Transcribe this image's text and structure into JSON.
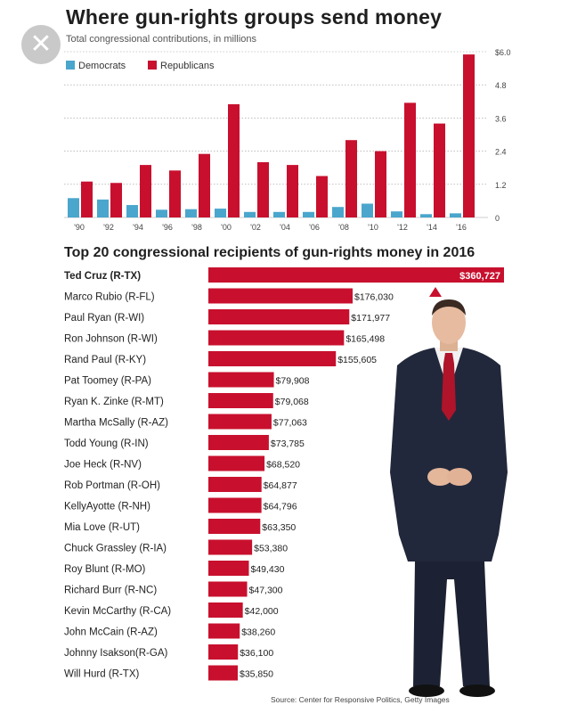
{
  "overlay": {
    "close_icon": "close-icon"
  },
  "header": {
    "title": "Where gun-rights groups send money",
    "subtitle": "Total congressional contributions, in millions"
  },
  "colors": {
    "democrats": "#4aa6cc",
    "republicans": "#c8102e"
  },
  "chart_data": [
    {
      "type": "bar",
      "title": "Where gun-rights groups send money",
      "subtitle": "Total congressional contributions, in millions",
      "categories": [
        "'90",
        "'92",
        "'94",
        "'96",
        "'98",
        "'00",
        "'02",
        "'04",
        "'06",
        "'08",
        "'10",
        "'12",
        "'14",
        "'16"
      ],
      "series": [
        {
          "name": "Democrats",
          "values": [
            0.7,
            0.65,
            0.45,
            0.28,
            0.3,
            0.32,
            0.2,
            0.2,
            0.2,
            0.38,
            0.5,
            0.22,
            0.12,
            0.15
          ]
        },
        {
          "name": "Republicans",
          "values": [
            1.3,
            1.25,
            1.9,
            1.7,
            2.3,
            4.1,
            2.0,
            1.9,
            1.5,
            2.8,
            2.4,
            4.15,
            3.4,
            5.9
          ]
        }
      ],
      "y_ticks": [
        "$6.0",
        "4.8",
        "3.6",
        "2.4",
        "1.2",
        "0"
      ],
      "ylim": [
        0,
        6.0
      ],
      "legend": [
        "Democrats",
        "Republicans"
      ],
      "legend_position": "top-left",
      "grid": true
    },
    {
      "type": "bar",
      "orientation": "horizontal",
      "title": "Top 20 congressional recipients of gun-rights money in 2016",
      "categories": [
        "Ted Cruz (R-TX)",
        "Marco Rubio (R-FL)",
        "Paul Ryan (R-WI)",
        "Ron Johnson (R-WI)",
        "Rand Paul (R-KY)",
        "Pat Toomey (R-PA)",
        "Ryan K. Zinke (R-MT)",
        "Martha McSally (R-AZ)",
        "Todd Young (R-IN)",
        "Joe Heck (R-NV)",
        "Rob Portman (R-OH)",
        "KellyAyotte (R-NH)",
        "Mia Love (R-UT)",
        "Chuck Grassley (R-IA)",
        "Roy Blunt (R-MO)",
        "Richard Burr (R-NC)",
        "Kevin McCarthy (R-CA)",
        "John McCain (R-AZ)",
        "Johnny  Isakson(R-GA)",
        "Will Hurd (R-TX)"
      ],
      "values": [
        360727,
        176030,
        171977,
        165498,
        155605,
        79908,
        79068,
        77063,
        73785,
        68520,
        64877,
        64796,
        63350,
        53380,
        49430,
        47300,
        42000,
        38260,
        36100,
        35850
      ],
      "labels": [
        "$360,727",
        "$176,030",
        "$171,977",
        "$165,498",
        "$155,605",
        "$79,908",
        "$79,068",
        "$77,063",
        "$73,785",
        "$68,520",
        "$64,877",
        "$64,796",
        "$63,350",
        "$53,380",
        "$49,430",
        "$47,300",
        "$42,000",
        "$38,260",
        "$36,100",
        "$35,850"
      ]
    }
  ],
  "source": "Source: Center for Responsive Politics, Getty Images"
}
